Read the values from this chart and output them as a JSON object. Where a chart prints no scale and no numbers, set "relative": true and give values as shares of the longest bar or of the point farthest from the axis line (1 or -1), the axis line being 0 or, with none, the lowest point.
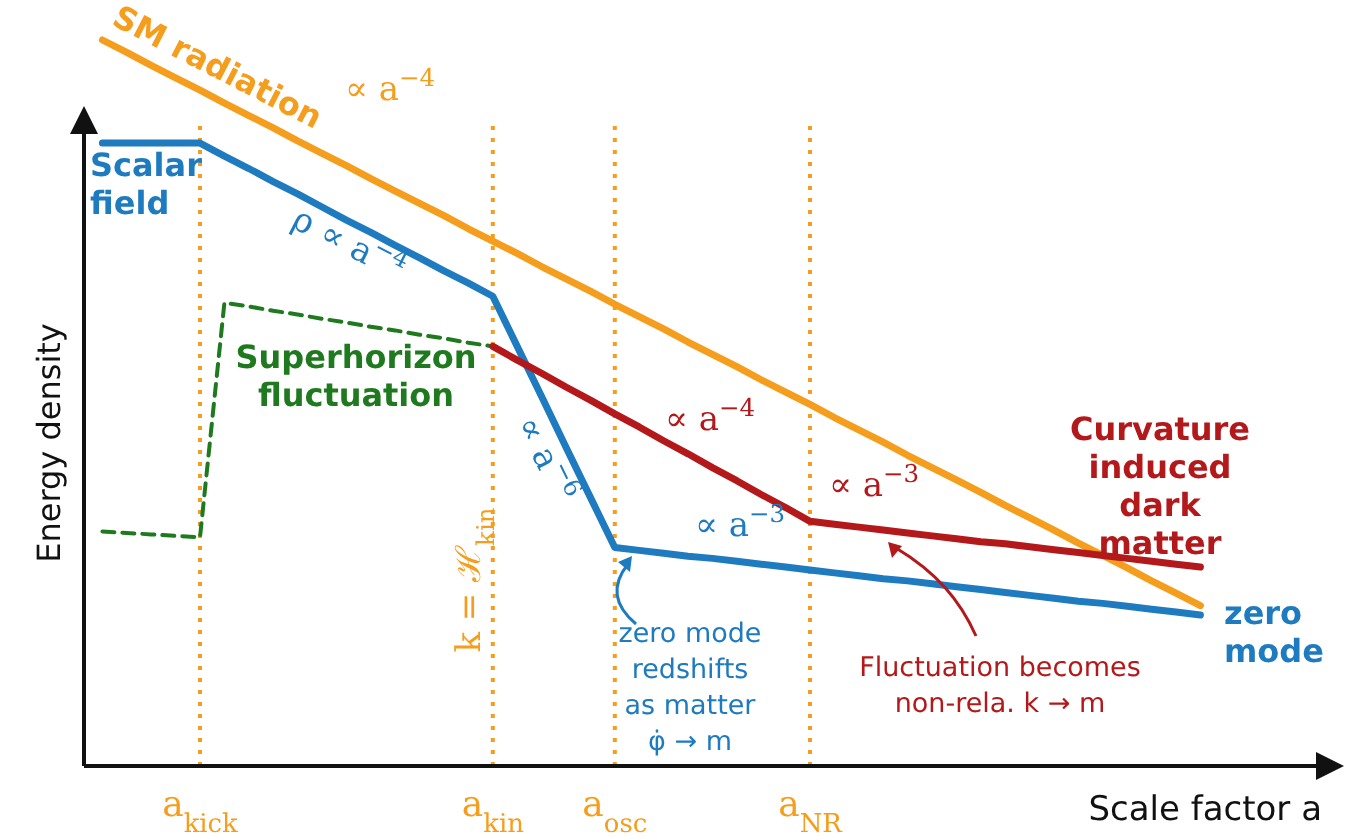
{
  "chart_data": {
    "type": "line",
    "relative": true,
    "xlabel": "Scale factor a",
    "ylabel": "Energy density",
    "legend": false,
    "marker": "none",
    "grid": "x",
    "categories": [
      null,
      null,
      null,
      null,
      "a$_{kick}$",
      null,
      null,
      null,
      null,
      null,
      null,
      null,
      null,
      null,
      null,
      null,
      "a$_{kin}$",
      null,
      null,
      null,
      null,
      "a$_{osc}$",
      null,
      null,
      null,
      null,
      null,
      null,
      null,
      "a$_{NR}$",
      null,
      null,
      null,
      null,
      null,
      null,
      null,
      null,
      null,
      null,
      null,
      null,
      null,
      null,
      null,
      null,
      null
    ],
    "series": [
      {
        "name": "SM radiation",
        "color": "#f59d1c",
        "values": [
          1,
          0.983,
          0.965,
          0.948,
          0.931,
          0.913,
          0.896,
          0.879,
          0.861,
          0.844,
          0.827,
          0.809,
          0.792,
          0.775,
          0.758,
          0.74,
          0.723,
          0.706,
          0.688,
          0.671,
          0.654,
          0.636,
          0.619,
          0.602,
          0.584,
          0.567,
          0.55,
          0.532,
          0.515,
          0.498,
          0.48,
          0.463,
          0.446,
          0.428,
          0.411,
          0.394,
          0.377,
          0.359,
          0.342,
          0.325,
          0.307,
          0.29,
          0.273,
          0.255,
          0.238,
          0.221,
          null
        ]
      },
      {
        "name": "Scalar field",
        "color": "#1f7bbf",
        "values": [
          0.858,
          0.858,
          0.858,
          0.858,
          0.858,
          0.84,
          0.823,
          0.805,
          0.788,
          0.77,
          0.752,
          0.735,
          0.717,
          0.7,
          0.682,
          0.665,
          0.647,
          0.578,
          0.509,
          0.439,
          0.37,
          0.301,
          0.297,
          0.293,
          0.289,
          0.286,
          0.282,
          0.278,
          0.274,
          0.27,
          0.266,
          0.262,
          0.258,
          0.255,
          0.251,
          0.247,
          0.243,
          0.239,
          0.235,
          0.231,
          0.227,
          0.224,
          0.22,
          0.216,
          0.212,
          0.208,
          null
        ]
      },
      {
        "name": "Superhorizon fluctuation",
        "color": "#1f7a1f",
        "line_style": "dashed",
        "values": [
          0.323,
          0.321,
          0.319,
          0.317,
          0.315,
          0.638,
          0.633,
          0.627,
          0.622,
          0.616,
          0.611,
          0.605,
          0.6,
          0.594,
          0.589,
          0.583,
          0.578,
          null,
          null,
          null,
          null,
          null,
          null,
          null,
          null,
          null,
          null,
          null,
          null,
          null,
          null,
          null,
          null,
          null,
          null,
          null,
          null,
          null,
          null,
          null,
          null,
          null,
          null,
          null,
          null,
          null,
          null
        ]
      },
      {
        "name": "Curvature induced dark matter",
        "color": "#b3191b",
        "values": [
          null,
          null,
          null,
          null,
          null,
          null,
          null,
          null,
          null,
          null,
          null,
          null,
          null,
          null,
          null,
          null,
          0.578,
          0.559,
          0.541,
          0.522,
          0.504,
          0.485,
          0.467,
          0.448,
          0.43,
          0.411,
          0.393,
          0.374,
          0.356,
          0.337,
          0.333,
          0.329,
          0.325,
          0.321,
          0.317,
          0.313,
          0.309,
          0.306,
          0.302,
          0.298,
          0.294,
          0.29,
          0.286,
          0.282,
          0.278,
          0.274,
          null
        ]
      }
    ],
    "annotations": [
      "∝ a$^{−4}$",
      "ρ ∝ a$^{−4}$",
      "∝ a$^{−6}$",
      "∝ a$^{−4}$",
      "∝ a$^{−3}$",
      "∝ a$^{−3}$",
      "zero mode",
      "zero mode\nredshifts\nas matter\nφ̇ → m",
      "Fluctuation becomes\nnon-rela. k → m",
      "k = ℋ$_{kin}$"
    ]
  }
}
